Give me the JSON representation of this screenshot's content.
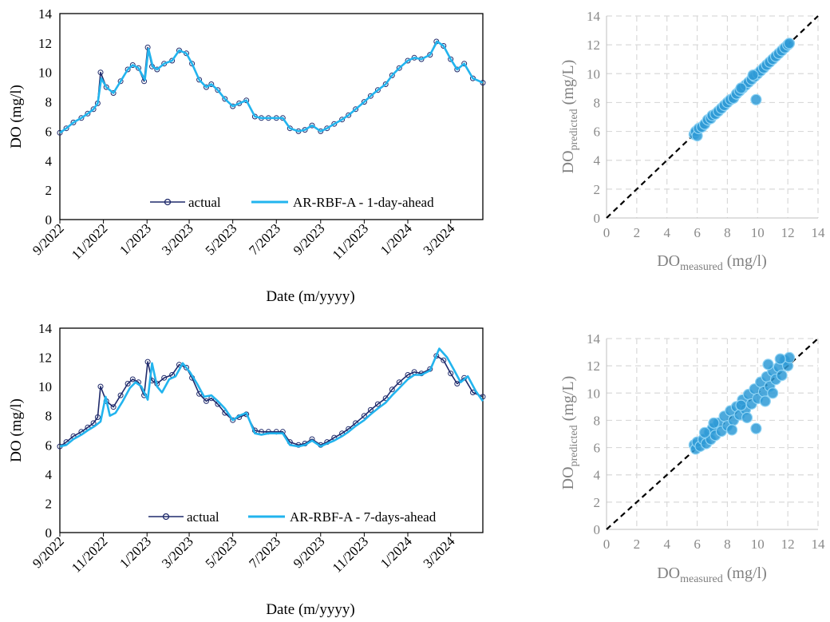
{
  "chart_data": [
    {
      "type": "line",
      "id": "ts1",
      "xlabel": "Date (m/yyyy)",
      "ylabel": "DO (mg/l)",
      "ylim": [
        0,
        14
      ],
      "yticks": [
        0,
        2,
        4,
        6,
        8,
        10,
        12,
        14
      ],
      "xlim": [
        "2022-09-01",
        "2024-04-15"
      ],
      "xticks": [
        {
          "date": "2022-09-01",
          "label": "9/2022"
        },
        {
          "date": "2022-11-01",
          "label": "11/2022"
        },
        {
          "date": "2023-01-01",
          "label": "1/2023"
        },
        {
          "date": "2023-03-01",
          "label": "3/2023"
        },
        {
          "date": "2023-05-01",
          "label": "5/2023"
        },
        {
          "date": "2023-07-01",
          "label": "7/2023"
        },
        {
          "date": "2023-09-01",
          "label": "9/2023"
        },
        {
          "date": "2023-11-01",
          "label": "11/2023"
        },
        {
          "date": "2024-01-01",
          "label": "1/2024"
        },
        {
          "date": "2024-03-01",
          "label": "3/2024"
        }
      ],
      "legend_position": "bottom",
      "series": [
        {
          "name": "actual",
          "color": "#1f2a6b",
          "marker": "circle",
          "x": [
            "2022-09-01",
            "2022-09-10",
            "2022-09-20",
            "2022-10-01",
            "2022-10-10",
            "2022-10-18",
            "2022-10-24",
            "2022-10-28",
            "2022-11-05",
            "2022-11-15",
            "2022-11-25",
            "2022-12-05",
            "2022-12-12",
            "2022-12-20",
            "2022-12-28",
            "2023-01-02",
            "2023-01-08",
            "2023-01-15",
            "2023-01-25",
            "2023-02-05",
            "2023-02-15",
            "2023-02-25",
            "2023-03-05",
            "2023-03-15",
            "2023-03-25",
            "2023-04-01",
            "2023-04-10",
            "2023-04-20",
            "2023-05-01",
            "2023-05-10",
            "2023-05-20",
            "2023-06-01",
            "2023-06-10",
            "2023-06-20",
            "2023-07-01",
            "2023-07-10",
            "2023-07-20",
            "2023-08-01",
            "2023-08-10",
            "2023-08-20",
            "2023-09-01",
            "2023-09-10",
            "2023-09-20",
            "2023-10-01",
            "2023-10-10",
            "2023-10-20",
            "2023-11-01",
            "2023-11-10",
            "2023-11-20",
            "2023-12-01",
            "2023-12-10",
            "2023-12-20",
            "2024-01-01",
            "2024-01-10",
            "2024-01-20",
            "2024-02-01",
            "2024-02-10",
            "2024-02-20",
            "2024-03-01",
            "2024-03-10",
            "2024-03-20",
            "2024-04-01",
            "2024-04-15"
          ],
          "y": [
            5.9,
            6.2,
            6.6,
            6.9,
            7.2,
            7.5,
            7.9,
            10.0,
            9.0,
            8.6,
            9.4,
            10.2,
            10.5,
            10.3,
            9.4,
            11.7,
            10.4,
            10.2,
            10.6,
            10.8,
            11.5,
            11.3,
            10.6,
            9.5,
            9.0,
            9.2,
            8.8,
            8.2,
            7.7,
            7.9,
            8.1,
            7.0,
            6.9,
            6.9,
            6.9,
            6.9,
            6.2,
            6.0,
            6.1,
            6.4,
            6.0,
            6.2,
            6.5,
            6.8,
            7.1,
            7.5,
            8.0,
            8.4,
            8.8,
            9.2,
            9.8,
            10.3,
            10.8,
            11.0,
            10.9,
            11.2,
            12.1,
            11.8,
            10.9,
            10.2,
            10.6,
            9.6,
            9.3
          ]
        },
        {
          "name": "AR-RBF-A - 1-day-ahead",
          "color": "#22b4ee",
          "marker": "none",
          "x": [
            "2022-09-01",
            "2022-09-10",
            "2022-09-20",
            "2022-10-01",
            "2022-10-10",
            "2022-10-18",
            "2022-10-24",
            "2022-10-29",
            "2022-11-05",
            "2022-11-15",
            "2022-11-25",
            "2022-12-05",
            "2022-12-12",
            "2022-12-20",
            "2022-12-29",
            "2023-01-03",
            "2023-01-09",
            "2023-01-15",
            "2023-01-25",
            "2023-02-05",
            "2023-02-15",
            "2023-02-25",
            "2023-03-05",
            "2023-03-15",
            "2023-03-25",
            "2023-04-01",
            "2023-04-10",
            "2023-04-20",
            "2023-05-01",
            "2023-05-10",
            "2023-05-20",
            "2023-06-01",
            "2023-06-10",
            "2023-06-20",
            "2023-07-01",
            "2023-07-10",
            "2023-07-20",
            "2023-08-01",
            "2023-08-10",
            "2023-08-20",
            "2023-09-01",
            "2023-09-10",
            "2023-09-20",
            "2023-10-01",
            "2023-10-10",
            "2023-10-20",
            "2023-11-01",
            "2023-11-10",
            "2023-11-20",
            "2023-12-01",
            "2023-12-10",
            "2023-12-20",
            "2024-01-01",
            "2024-01-10",
            "2024-01-20",
            "2024-02-01",
            "2024-02-11",
            "2024-02-20",
            "2024-03-01",
            "2024-03-10",
            "2024-03-20",
            "2024-04-01",
            "2024-04-15"
          ],
          "y": [
            5.9,
            6.2,
            6.6,
            6.9,
            7.2,
            7.5,
            7.9,
            9.6,
            9.0,
            8.6,
            9.4,
            10.2,
            10.5,
            10.3,
            9.5,
            11.6,
            10.4,
            10.2,
            10.6,
            10.8,
            11.5,
            11.3,
            10.6,
            9.5,
            9.0,
            9.2,
            8.8,
            8.2,
            7.7,
            7.9,
            8.1,
            7.0,
            6.9,
            6.9,
            6.9,
            6.9,
            6.2,
            6.0,
            6.1,
            6.4,
            6.0,
            6.2,
            6.5,
            6.8,
            7.1,
            7.5,
            8.0,
            8.4,
            8.8,
            9.2,
            9.8,
            10.3,
            10.8,
            11.0,
            10.9,
            11.2,
            12.1,
            11.8,
            10.9,
            10.2,
            10.6,
            9.6,
            9.3
          ]
        }
      ]
    },
    {
      "type": "scatter",
      "id": "sc1",
      "xlabel": "DO",
      "xlabel_sub": "measured",
      "xlabel_unit": " (mg/l)",
      "ylabel": "DO",
      "ylabel_sub": "predicted",
      "ylabel_unit": " (mg/L)",
      "xlim": [
        0,
        14
      ],
      "ylim": [
        0,
        14
      ],
      "ticks": [
        0,
        2,
        4,
        6,
        8,
        10,
        12,
        14
      ],
      "grid": true,
      "reference_line": "y = x (dashed)",
      "color": "#2e9ad6",
      "points": [
        [
          5.8,
          5.8
        ],
        [
          5.9,
          6.0
        ],
        [
          6.0,
          5.7
        ],
        [
          6.1,
          6.2
        ],
        [
          6.3,
          6.3
        ],
        [
          6.5,
          6.5
        ],
        [
          6.7,
          6.8
        ],
        [
          6.9,
          6.9
        ],
        [
          7.0,
          7.1
        ],
        [
          7.2,
          7.2
        ],
        [
          7.4,
          7.4
        ],
        [
          7.6,
          7.6
        ],
        [
          7.8,
          7.8
        ],
        [
          8.0,
          8.0
        ],
        [
          8.2,
          8.2
        ],
        [
          8.4,
          8.3
        ],
        [
          8.6,
          8.6
        ],
        [
          8.8,
          8.8
        ],
        [
          9.0,
          9.0
        ],
        [
          9.2,
          9.2
        ],
        [
          9.4,
          9.4
        ],
        [
          9.6,
          9.6
        ],
        [
          9.8,
          9.8
        ],
        [
          10.0,
          10.0
        ],
        [
          10.2,
          10.2
        ],
        [
          10.4,
          10.4
        ],
        [
          10.6,
          10.6
        ],
        [
          10.8,
          10.8
        ],
        [
          11.0,
          11.0
        ],
        [
          11.2,
          11.2
        ],
        [
          11.4,
          11.4
        ],
        [
          11.6,
          11.6
        ],
        [
          11.8,
          11.8
        ],
        [
          12.0,
          12.0
        ],
        [
          12.1,
          12.1
        ],
        [
          9.9,
          8.2
        ],
        [
          8.9,
          9.0
        ],
        [
          9.7,
          9.9
        ]
      ]
    },
    {
      "type": "line",
      "id": "ts2",
      "xlabel": "Date (m/yyyy)",
      "ylabel": "DO (mg/l)",
      "ylim": [
        0,
        14
      ],
      "yticks": [
        0,
        2,
        4,
        6,
        8,
        10,
        12,
        14
      ],
      "xlim": [
        "2022-09-01",
        "2024-04-15"
      ],
      "xticks": [
        {
          "date": "2022-09-01",
          "label": "9/2022"
        },
        {
          "date": "2022-11-01",
          "label": "11/2022"
        },
        {
          "date": "2023-01-01",
          "label": "1/2023"
        },
        {
          "date": "2023-03-01",
          "label": "3/2023"
        },
        {
          "date": "2023-05-01",
          "label": "5/2023"
        },
        {
          "date": "2023-07-01",
          "label": "7/2023"
        },
        {
          "date": "2023-09-01",
          "label": "9/2023"
        },
        {
          "date": "2023-11-01",
          "label": "11/2023"
        },
        {
          "date": "2024-01-01",
          "label": "1/2024"
        },
        {
          "date": "2024-03-01",
          "label": "3/2024"
        }
      ],
      "legend_position": "bottom",
      "series": [
        {
          "name": "actual",
          "color": "#1f2a6b",
          "marker": "circle",
          "x": [
            "2022-09-01",
            "2022-09-10",
            "2022-09-20",
            "2022-10-01",
            "2022-10-10",
            "2022-10-18",
            "2022-10-24",
            "2022-10-28",
            "2022-11-05",
            "2022-11-15",
            "2022-11-25",
            "2022-12-05",
            "2022-12-12",
            "2022-12-20",
            "2022-12-28",
            "2023-01-02",
            "2023-01-08",
            "2023-01-15",
            "2023-01-25",
            "2023-02-05",
            "2023-02-15",
            "2023-02-25",
            "2023-03-05",
            "2023-03-15",
            "2023-03-25",
            "2023-04-01",
            "2023-04-10",
            "2023-04-20",
            "2023-05-01",
            "2023-05-10",
            "2023-05-20",
            "2023-06-01",
            "2023-06-10",
            "2023-06-20",
            "2023-07-01",
            "2023-07-10",
            "2023-07-20",
            "2023-08-01",
            "2023-08-10",
            "2023-08-20",
            "2023-09-01",
            "2023-09-10",
            "2023-09-20",
            "2023-10-01",
            "2023-10-10",
            "2023-10-20",
            "2023-11-01",
            "2023-11-10",
            "2023-11-20",
            "2023-12-01",
            "2023-12-10",
            "2023-12-20",
            "2024-01-01",
            "2024-01-10",
            "2024-01-20",
            "2024-02-01",
            "2024-02-10",
            "2024-02-20",
            "2024-03-01",
            "2024-03-10",
            "2024-03-20",
            "2024-04-01",
            "2024-04-15"
          ],
          "y": [
            5.9,
            6.2,
            6.6,
            6.9,
            7.2,
            7.5,
            7.9,
            10.0,
            9.0,
            8.6,
            9.4,
            10.2,
            10.5,
            10.3,
            9.4,
            11.7,
            10.4,
            10.2,
            10.6,
            10.8,
            11.5,
            11.3,
            10.6,
            9.5,
            9.0,
            9.2,
            8.8,
            8.2,
            7.7,
            7.9,
            8.1,
            7.0,
            6.9,
            6.9,
            6.9,
            6.9,
            6.2,
            6.0,
            6.1,
            6.4,
            6.0,
            6.2,
            6.5,
            6.8,
            7.1,
            7.5,
            8.0,
            8.4,
            8.8,
            9.2,
            9.8,
            10.3,
            10.8,
            11.0,
            10.9,
            11.2,
            12.1,
            11.8,
            10.9,
            10.2,
            10.6,
            9.6,
            9.3
          ]
        },
        {
          "name": "AR-RBF-A - 7-days-ahead",
          "color": "#22b4ee",
          "marker": "none",
          "x": [
            "2022-09-01",
            "2022-09-10",
            "2022-09-20",
            "2022-10-01",
            "2022-10-10",
            "2022-10-20",
            "2022-10-28",
            "2022-11-04",
            "2022-11-10",
            "2022-11-18",
            "2022-11-28",
            "2022-12-08",
            "2022-12-16",
            "2022-12-24",
            "2023-01-02",
            "2023-01-08",
            "2023-01-15",
            "2023-01-22",
            "2023-02-01",
            "2023-02-10",
            "2023-02-20",
            "2023-03-02",
            "2023-03-12",
            "2023-03-22",
            "2023-04-01",
            "2023-04-10",
            "2023-04-20",
            "2023-05-01",
            "2023-05-10",
            "2023-05-20",
            "2023-06-01",
            "2023-06-10",
            "2023-06-20",
            "2023-07-01",
            "2023-07-10",
            "2023-07-20",
            "2023-08-01",
            "2023-08-10",
            "2023-08-20",
            "2023-09-01",
            "2023-09-10",
            "2023-09-20",
            "2023-10-01",
            "2023-10-10",
            "2023-10-20",
            "2023-11-01",
            "2023-11-10",
            "2023-11-20",
            "2023-12-01",
            "2023-12-10",
            "2023-12-20",
            "2024-01-01",
            "2024-01-10",
            "2024-01-20",
            "2024-02-01",
            "2024-02-14",
            "2024-02-25",
            "2024-03-05",
            "2024-03-15",
            "2024-03-25",
            "2024-04-05",
            "2024-04-15"
          ],
          "y": [
            5.9,
            6.0,
            6.4,
            6.7,
            7.0,
            7.3,
            7.6,
            9.3,
            8.0,
            8.2,
            9.0,
            9.9,
            10.3,
            10.0,
            9.1,
            11.6,
            10.0,
            9.6,
            10.5,
            10.7,
            11.6,
            11.0,
            10.2,
            9.3,
            9.4,
            9.0,
            8.5,
            7.7,
            8.0,
            8.2,
            6.8,
            6.7,
            6.8,
            6.8,
            6.8,
            6.0,
            5.9,
            6.0,
            6.3,
            5.9,
            6.1,
            6.3,
            6.6,
            6.9,
            7.3,
            7.7,
            8.1,
            8.5,
            8.9,
            9.4,
            9.9,
            10.5,
            10.8,
            10.8,
            11.1,
            12.6,
            12.0,
            11.2,
            10.3,
            10.7,
            9.7,
            9.0
          ]
        }
      ]
    },
    {
      "type": "scatter",
      "id": "sc2",
      "xlabel": "DO",
      "xlabel_sub": "measured",
      "xlabel_unit": " (mg/l)",
      "ylabel": "DO",
      "ylabel_sub": "predicted",
      "ylabel_unit": " (mg/L)",
      "xlim": [
        0,
        14
      ],
      "ylim": [
        0,
        14
      ],
      "ticks": [
        0,
        2,
        4,
        6,
        8,
        10,
        12,
        14
      ],
      "grid": true,
      "reference_line": "y = x (dashed)",
      "color": "#2e9ad6",
      "points": [
        [
          5.8,
          6.2
        ],
        [
          5.9,
          5.9
        ],
        [
          6.0,
          6.4
        ],
        [
          6.2,
          6.1
        ],
        [
          6.4,
          6.6
        ],
        [
          6.6,
          6.3
        ],
        [
          6.8,
          7.1
        ],
        [
          6.9,
          6.6
        ],
        [
          7.0,
          7.4
        ],
        [
          7.2,
          6.9
        ],
        [
          7.4,
          7.8
        ],
        [
          7.6,
          7.2
        ],
        [
          7.8,
          8.3
        ],
        [
          8.0,
          7.6
        ],
        [
          8.2,
          8.7
        ],
        [
          8.4,
          8.0
        ],
        [
          8.6,
          9.0
        ],
        [
          8.8,
          8.4
        ],
        [
          9.0,
          9.5
        ],
        [
          9.2,
          8.8
        ],
        [
          9.4,
          9.9
        ],
        [
          9.6,
          9.2
        ],
        [
          9.8,
          10.3
        ],
        [
          10.0,
          9.6
        ],
        [
          10.2,
          10.8
        ],
        [
          10.4,
          10.1
        ],
        [
          10.6,
          11.2
        ],
        [
          10.8,
          10.5
        ],
        [
          11.0,
          11.6
        ],
        [
          11.2,
          11.0
        ],
        [
          11.4,
          11.9
        ],
        [
          11.6,
          11.3
        ],
        [
          11.8,
          12.4
        ],
        [
          12.0,
          12.0
        ],
        [
          12.1,
          12.6
        ],
        [
          9.9,
          7.4
        ],
        [
          10.5,
          9.4
        ],
        [
          11.0,
          10.0
        ],
        [
          9.3,
          8.2
        ],
        [
          8.3,
          7.3
        ],
        [
          7.1,
          7.8
        ],
        [
          6.5,
          7.1
        ],
        [
          10.7,
          12.1
        ],
        [
          11.5,
          12.5
        ],
        [
          8.9,
          9.1
        ]
      ]
    }
  ]
}
